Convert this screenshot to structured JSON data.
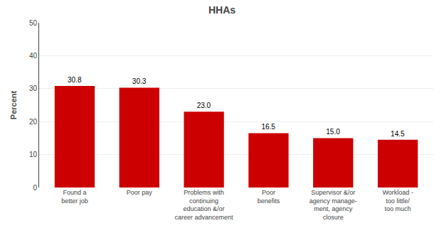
{
  "chart_data": {
    "type": "bar",
    "title": "HHAs",
    "ylabel": "Percent",
    "categories": [
      "Found a\nbetter job",
      "Poor pay",
      "Problems with\ncontinuing\neducation &/or\ncareer advancement",
      "Poor\nbenefits",
      "Supervisor &/or\nagency manage-\nment, agency\nclosure",
      "Workload -\ntoo little/\ntoo much"
    ],
    "values": [
      30.8,
      30.3,
      23.0,
      16.5,
      15.0,
      14.5
    ],
    "value_labels": [
      "30.8",
      "30.3",
      "23.0",
      "16.5",
      "15.0",
      "14.5"
    ],
    "color": "#cc0000",
    "ylim": [
      0,
      50
    ],
    "yticks": [
      0,
      10,
      20,
      30,
      40,
      50
    ],
    "grid": true,
    "data_labels": true
  }
}
